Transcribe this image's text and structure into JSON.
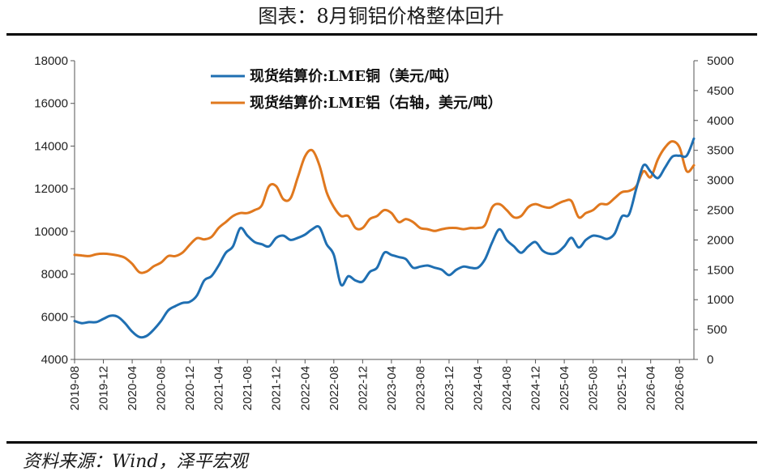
{
  "title": "图表：8月铜铝价格整体回升",
  "source": "资料来源：Wind，泽平宏观",
  "chart_data": {
    "type": "line",
    "y_left": {
      "min": 4000,
      "max": 18000,
      "ticks": [
        "4000",
        "6000",
        "8000",
        "10000",
        "12000",
        "14000",
        "16000",
        "18000"
      ]
    },
    "y_right": {
      "min": 0,
      "max": 5000,
      "ticks": [
        "0",
        "500",
        "1000",
        "1500",
        "2000",
        "2500",
        "3000",
        "3500",
        "4000",
        "4500",
        "5000"
      ]
    },
    "x_labels": [
      "2019-08",
      "2019-12",
      "2020-04",
      "2020-08",
      "2020-12",
      "2021-04",
      "2021-08",
      "2021-12",
      "2022-04",
      "2022-08",
      "2022-12",
      "2023-04",
      "2023-08",
      "2023-12",
      "2024-04",
      "2024-08",
      "2024-12",
      "2025-04",
      "2025-08",
      "2025-12",
      "2026-04",
      "2026-08"
    ],
    "legend": "top-center",
    "series": [
      {
        "name": "现货结算价:LME铜（美元/吨）",
        "axis": "left",
        "color": "#1f6fb2",
        "points": [
          [
            0,
            5800
          ],
          [
            1,
            5700
          ],
          [
            2,
            5750
          ],
          [
            3,
            5750
          ],
          [
            4,
            5900
          ],
          [
            5,
            6050
          ],
          [
            6,
            6000
          ],
          [
            7,
            5700
          ],
          [
            8,
            5300
          ],
          [
            9,
            5050
          ],
          [
            10,
            5100
          ],
          [
            11,
            5400
          ],
          [
            12,
            5800
          ],
          [
            13,
            6300
          ],
          [
            14,
            6500
          ],
          [
            15,
            6650
          ],
          [
            16,
            6700
          ],
          [
            17,
            7000
          ],
          [
            18,
            7700
          ],
          [
            19,
            7900
          ],
          [
            20,
            8400
          ],
          [
            21,
            9000
          ],
          [
            22,
            9300
          ],
          [
            23,
            10150
          ],
          [
            24,
            9800
          ],
          [
            25,
            9500
          ],
          [
            26,
            9400
          ],
          [
            27,
            9300
          ],
          [
            28,
            9700
          ],
          [
            29,
            9800
          ],
          [
            30,
            9600
          ],
          [
            31,
            9700
          ],
          [
            32,
            9850
          ],
          [
            33,
            10100
          ],
          [
            34,
            10200
          ],
          [
            35,
            9400
          ],
          [
            36,
            8900
          ],
          [
            37,
            7500
          ],
          [
            38,
            7900
          ],
          [
            39,
            7700
          ],
          [
            40,
            7650
          ],
          [
            41,
            8100
          ],
          [
            42,
            8300
          ],
          [
            43,
            9000
          ],
          [
            44,
            8900
          ],
          [
            45,
            8800
          ],
          [
            46,
            8700
          ],
          [
            47,
            8300
          ],
          [
            48,
            8350
          ],
          [
            49,
            8400
          ],
          [
            50,
            8300
          ],
          [
            51,
            8200
          ],
          [
            52,
            7950
          ],
          [
            53,
            8200
          ],
          [
            54,
            8350
          ],
          [
            55,
            8300
          ],
          [
            56,
            8300
          ],
          [
            57,
            8700
          ],
          [
            58,
            9500
          ],
          [
            59,
            10100
          ],
          [
            60,
            9600
          ],
          [
            61,
            9300
          ],
          [
            62,
            9000
          ],
          [
            63,
            9300
          ],
          [
            64,
            9500
          ],
          [
            65,
            9100
          ],
          [
            66,
            8950
          ],
          [
            67,
            9000
          ],
          [
            68,
            9300
          ],
          [
            69,
            9700
          ],
          [
            70,
            9250
          ],
          [
            71,
            9600
          ],
          [
            72,
            9800
          ],
          [
            73,
            9750
          ],
          [
            74,
            9650
          ],
          [
            75,
            9900
          ],
          [
            76,
            10700
          ],
          [
            77,
            10800
          ],
          [
            78,
            12000
          ],
          [
            79,
            13100
          ],
          [
            80,
            12800
          ],
          [
            81,
            12500
          ],
          [
            82,
            13000
          ],
          [
            83,
            13500
          ],
          [
            84,
            13550
          ],
          [
            85,
            13550
          ],
          [
            86,
            14350
          ]
        ]
      },
      {
        "name": "现货结算价:LME铝（右轴，美元/吨）",
        "axis": "right",
        "color": "#e0781e",
        "points": [
          [
            0,
            1750
          ],
          [
            1,
            1740
          ],
          [
            2,
            1730
          ],
          [
            3,
            1760
          ],
          [
            4,
            1770
          ],
          [
            5,
            1760
          ],
          [
            6,
            1740
          ],
          [
            7,
            1700
          ],
          [
            8,
            1600
          ],
          [
            9,
            1460
          ],
          [
            10,
            1470
          ],
          [
            11,
            1560
          ],
          [
            12,
            1620
          ],
          [
            13,
            1730
          ],
          [
            14,
            1730
          ],
          [
            15,
            1790
          ],
          [
            16,
            1920
          ],
          [
            17,
            2030
          ],
          [
            18,
            2010
          ],
          [
            19,
            2050
          ],
          [
            20,
            2200
          ],
          [
            21,
            2300
          ],
          [
            22,
            2400
          ],
          [
            23,
            2450
          ],
          [
            24,
            2450
          ],
          [
            25,
            2500
          ],
          [
            26,
            2580
          ],
          [
            27,
            2900
          ],
          [
            28,
            2900
          ],
          [
            29,
            2680
          ],
          [
            30,
            2700
          ],
          [
            31,
            3050
          ],
          [
            32,
            3400
          ],
          [
            33,
            3500
          ],
          [
            34,
            3250
          ],
          [
            35,
            2800
          ],
          [
            36,
            2550
          ],
          [
            37,
            2400
          ],
          [
            38,
            2400
          ],
          [
            39,
            2200
          ],
          [
            40,
            2200
          ],
          [
            41,
            2350
          ],
          [
            42,
            2400
          ],
          [
            43,
            2500
          ],
          [
            44,
            2450
          ],
          [
            45,
            2300
          ],
          [
            46,
            2350
          ],
          [
            47,
            2300
          ],
          [
            48,
            2200
          ],
          [
            49,
            2180
          ],
          [
            50,
            2150
          ],
          [
            51,
            2180
          ],
          [
            52,
            2200
          ],
          [
            53,
            2200
          ],
          [
            54,
            2180
          ],
          [
            55,
            2200
          ],
          [
            56,
            2200
          ],
          [
            57,
            2250
          ],
          [
            58,
            2550
          ],
          [
            59,
            2600
          ],
          [
            60,
            2500
          ],
          [
            61,
            2380
          ],
          [
            62,
            2400
          ],
          [
            63,
            2550
          ],
          [
            64,
            2600
          ],
          [
            65,
            2560
          ],
          [
            66,
            2540
          ],
          [
            67,
            2600
          ],
          [
            68,
            2650
          ],
          [
            69,
            2650
          ],
          [
            70,
            2380
          ],
          [
            71,
            2450
          ],
          [
            72,
            2500
          ],
          [
            73,
            2600
          ],
          [
            74,
            2600
          ],
          [
            75,
            2700
          ],
          [
            76,
            2800
          ],
          [
            77,
            2820
          ],
          [
            78,
            2900
          ],
          [
            79,
            3150
          ],
          [
            80,
            3050
          ],
          [
            81,
            3350
          ],
          [
            82,
            3550
          ],
          [
            83,
            3650
          ],
          [
            84,
            3550
          ],
          [
            85,
            3150
          ],
          [
            86,
            3250
          ]
        ]
      }
    ]
  }
}
